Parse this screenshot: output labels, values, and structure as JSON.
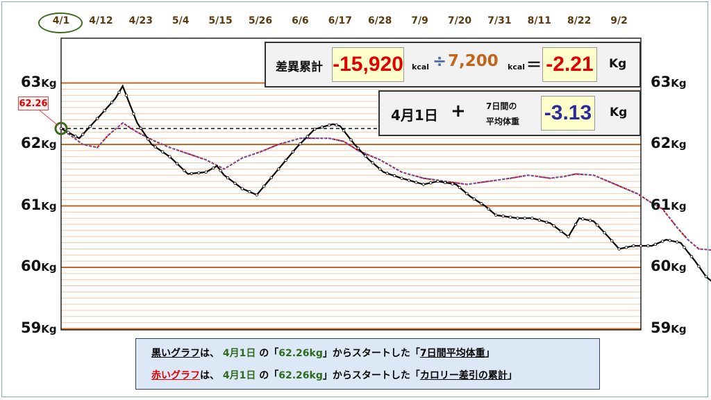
{
  "chart_data": {
    "type": "line",
    "date_labels": [
      "4/1",
      "4/12",
      "4/23",
      "5/4",
      "5/15",
      "5/26",
      "6/6",
      "6/17",
      "6/28",
      "7/9",
      "7/20",
      "7/31",
      "8/11",
      "8/22",
      "9/2"
    ],
    "x_unit_days_between_labels": 11,
    "y_ticks": [
      {
        "value": 63,
        "label": "63",
        "unit": "Kg"
      },
      {
        "value": 62,
        "label": "62",
        "unit": "Kg"
      },
      {
        "value": 61,
        "label": "61",
        "unit": "Kg"
      },
      {
        "value": 60,
        "label": "60",
        "unit": "Kg"
      },
      {
        "value": 59,
        "label": "59",
        "unit": "Kg"
      }
    ],
    "ylim": [
      59,
      64
    ],
    "start_value_label": "62.26",
    "reference_line_value": 62.26,
    "series": [
      {
        "key": "black",
        "color": "#000000",
        "anchors": [
          [
            0,
            62.26
          ],
          [
            5,
            62.1
          ],
          [
            12,
            62.55
          ],
          [
            15,
            62.75
          ],
          [
            17,
            62.95
          ],
          [
            21,
            62.35
          ],
          [
            25,
            62.0
          ],
          [
            30,
            61.8
          ],
          [
            35,
            61.52
          ],
          [
            40,
            61.55
          ],
          [
            43,
            61.65
          ],
          [
            45,
            61.5
          ],
          [
            50,
            61.28
          ],
          [
            54,
            61.18
          ],
          [
            60,
            61.6
          ],
          [
            65,
            61.95
          ],
          [
            70,
            62.25
          ],
          [
            75,
            62.33
          ],
          [
            77,
            62.3
          ],
          [
            81,
            62.0
          ],
          [
            85,
            61.75
          ],
          [
            89,
            61.55
          ],
          [
            94,
            61.45
          ],
          [
            100,
            61.35
          ],
          [
            104,
            61.4
          ],
          [
            109,
            61.35
          ],
          [
            113,
            61.15
          ],
          [
            117,
            61.0
          ],
          [
            120,
            60.85
          ],
          [
            126,
            60.8
          ],
          [
            130,
            60.8
          ],
          [
            135,
            60.72
          ],
          [
            140,
            60.5
          ],
          [
            143,
            60.8
          ],
          [
            147,
            60.75
          ],
          [
            151,
            60.5
          ],
          [
            154,
            60.3
          ],
          [
            158,
            60.35
          ],
          [
            163,
            60.35
          ],
          [
            167,
            60.45
          ],
          [
            171,
            60.4
          ],
          [
            175,
            60.1
          ],
          [
            178,
            59.85
          ],
          [
            181,
            59.7
          ],
          [
            185,
            59.7
          ],
          [
            190,
            59.8
          ],
          [
            194,
            59.7
          ],
          [
            197,
            59.55
          ],
          [
            201,
            59.3
          ],
          [
            204,
            59.15
          ]
        ]
      },
      {
        "key": "red",
        "color": "#e00000",
        "anchors": [
          [
            0,
            62.26
          ],
          [
            6,
            62.0
          ],
          [
            10,
            61.95
          ],
          [
            13,
            62.15
          ],
          [
            17,
            62.35
          ],
          [
            21,
            62.2
          ],
          [
            26,
            62.05
          ],
          [
            30,
            61.95
          ],
          [
            35,
            61.85
          ],
          [
            40,
            61.75
          ],
          [
            45,
            61.6
          ],
          [
            50,
            61.78
          ],
          [
            55,
            61.88
          ],
          [
            60,
            62.0
          ],
          [
            66,
            62.1
          ],
          [
            74,
            62.1
          ],
          [
            78,
            62.05
          ],
          [
            82,
            61.9
          ],
          [
            88,
            61.75
          ],
          [
            94,
            61.55
          ],
          [
            100,
            61.45
          ],
          [
            106,
            61.4
          ],
          [
            112,
            61.35
          ],
          [
            118,
            61.4
          ],
          [
            124,
            61.45
          ],
          [
            129,
            61.5
          ],
          [
            135,
            61.45
          ],
          [
            139,
            61.48
          ],
          [
            142,
            61.52
          ],
          [
            147,
            61.5
          ],
          [
            151,
            61.4
          ],
          [
            155,
            61.3
          ],
          [
            159,
            61.2
          ],
          [
            163,
            61.05
          ],
          [
            166,
            60.95
          ],
          [
            170,
            60.65
          ],
          [
            173,
            60.45
          ],
          [
            176,
            60.3
          ],
          [
            180,
            60.28
          ],
          [
            184,
            60.25
          ],
          [
            188,
            60.2
          ],
          [
            192,
            60.1
          ],
          [
            196,
            60.05
          ],
          [
            198,
            60.05
          ],
          [
            204,
            60.05
          ]
        ]
      }
    ]
  },
  "summary": {
    "row1_label": "差異累計",
    "cumulative_diff": "-15,920",
    "unit_kcal": "kcal",
    "divide_sign": "÷",
    "divisor": "7,200",
    "unit_kcal2": "kcal",
    "equals_sign": "＝",
    "result_kg": "-2.21",
    "unit_kg": "Kg",
    "row2_date": "4月1日",
    "plus_sign": "+",
    "row2_label_line1": "7日間の",
    "row2_label_line2": "平均体重",
    "avg_diff": "-3.13",
    "unit_kg2": "Kg"
  },
  "legend": {
    "line1": {
      "series_name": "黒いグラフ",
      "p1": "は、",
      "date": "4月1日",
      "p2": " の「",
      "value": "62.26kg",
      "p3": "」からスタートした「",
      "desc": "7日間平均体重",
      "p4": "」"
    },
    "line2": {
      "series_name": "赤いグラフ",
      "p1": "は、",
      "date": "4月1日",
      "p2": " の「",
      "value": "62.26kg",
      "p3": "」からスタートした「",
      "desc": "カロリー差引の累計",
      "p4": "」"
    }
  }
}
